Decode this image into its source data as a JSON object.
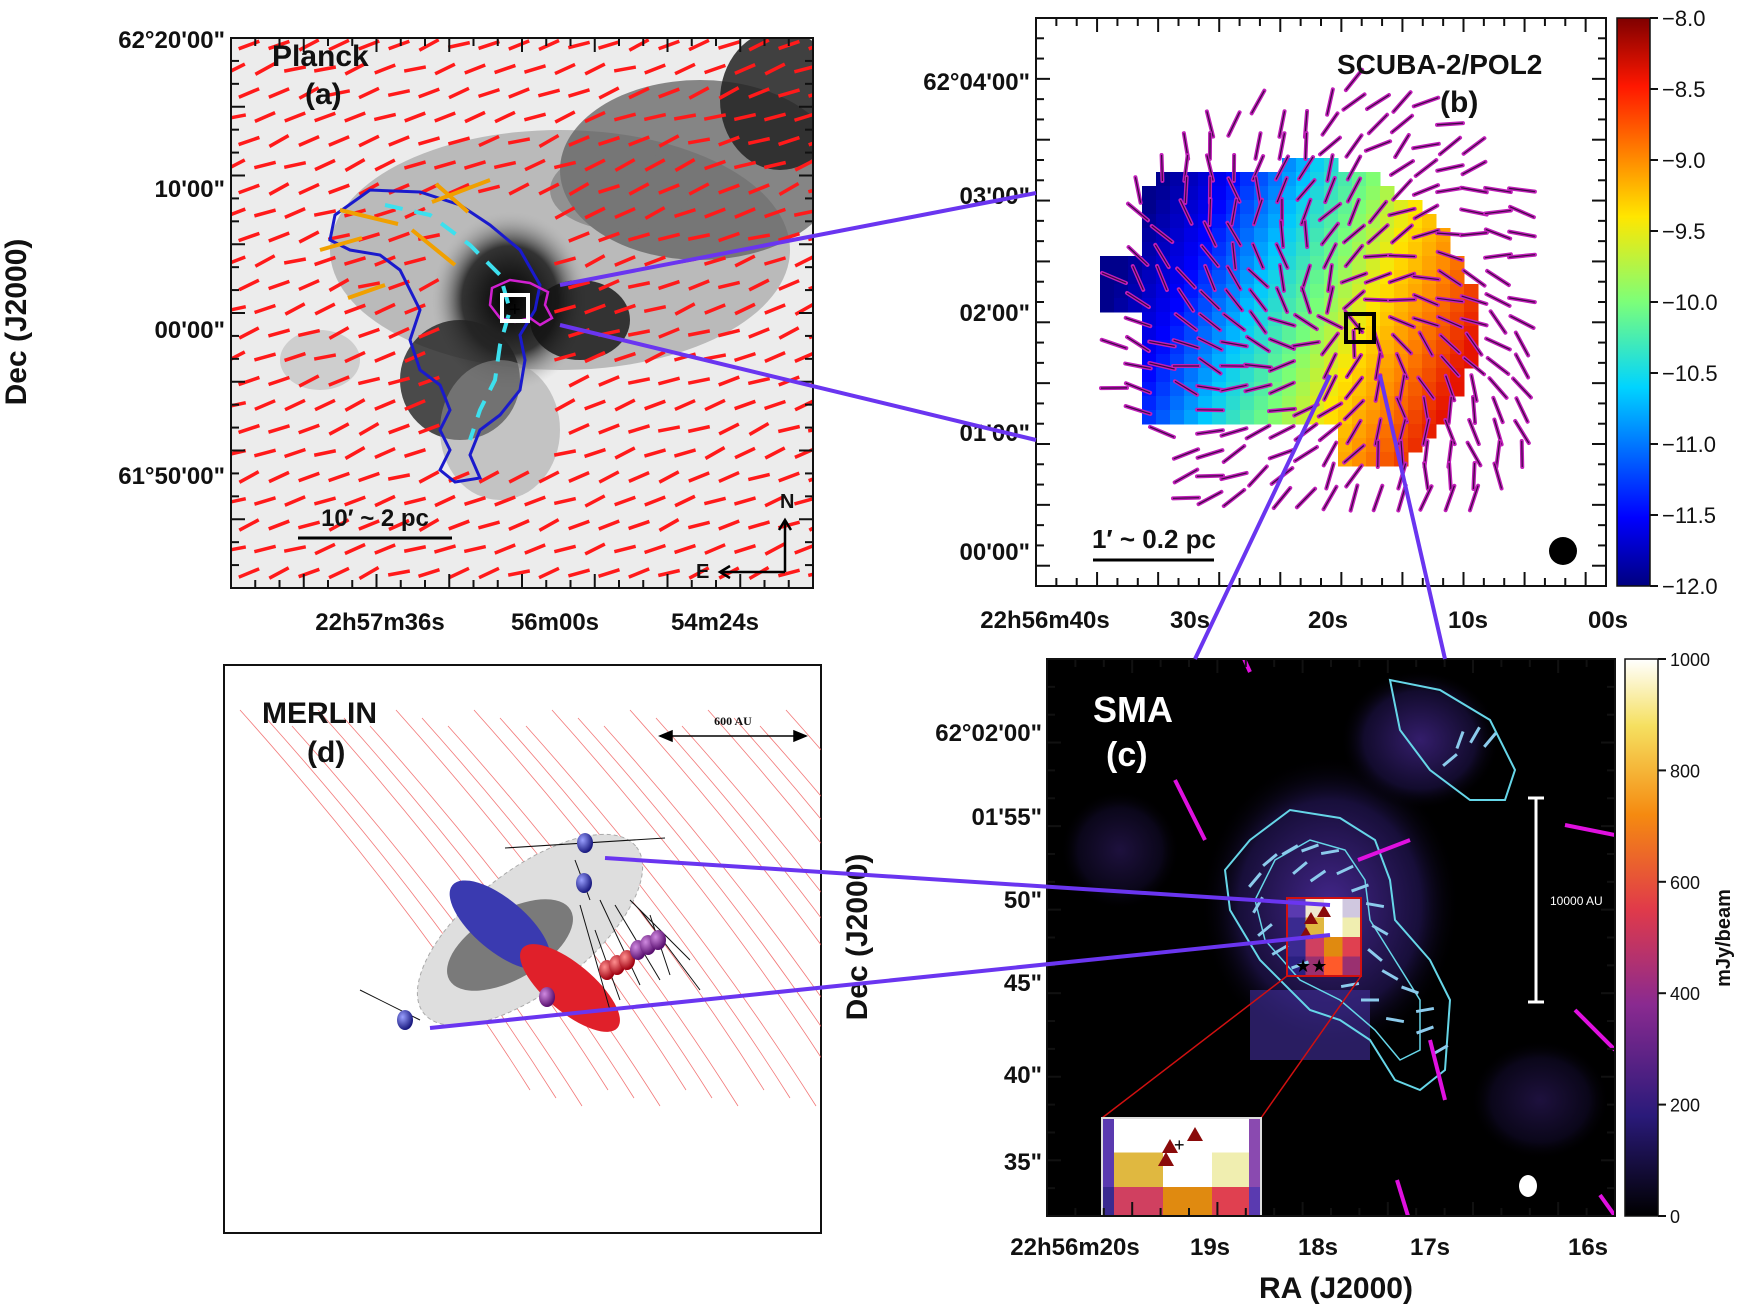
{
  "panel_a": {
    "title": "Planck",
    "letter": "(a)",
    "dec_ticks": [
      "62°20'00\"",
      "10'00\"",
      "00'00\"",
      "61°50'00\""
    ],
    "ra_ticks": [
      "22h57m36s",
      "56m00s",
      "54m24s"
    ],
    "ylabel": "Dec (J2000)",
    "scalebar": "10′ ~ 2 pc",
    "compass_n": "N",
    "compass_e": "E"
  },
  "panel_b": {
    "title": "SCUBA-2/POL2",
    "letter": "(b)",
    "dec_ticks": [
      "62°04'00\"",
      "03'00\"",
      "02'00\"",
      "01'00\"",
      "00'00\""
    ],
    "ra_ticks": [
      "22h56m40s",
      "30s",
      "20s",
      "10s",
      "00s"
    ],
    "scalebar": "1′ ~ 0.2 pc",
    "colorbar_ticks": [
      "−8.0",
      "−8.5",
      "−9.0",
      "−9.5",
      "−10.0",
      "−10.5",
      "−11.0",
      "−11.5",
      "−12.0"
    ]
  },
  "panel_c": {
    "title": "SMA",
    "letter": "(c)",
    "dec_ticks": [
      "62°02'00\"",
      "01'55\"",
      "50\"",
      "45\"",
      "40\"",
      "35\""
    ],
    "ra_ticks": [
      "22h56m20s",
      "19s",
      "18s",
      "17s",
      "16s"
    ],
    "ylabel": "Dec (J2000)",
    "xlabel": "RA (J2000)",
    "scalebar": "10000 AU",
    "colorbar_ticks": [
      "1000",
      "800",
      "600",
      "400",
      "200",
      "0"
    ],
    "colorbar_label": "mJy/beam"
  },
  "panel_d": {
    "title": "MERLIN",
    "letter": "(d)",
    "scalebar": "600 AU"
  },
  "colors": {
    "connector": "#6a35f0",
    "planck_vectors": "#ff1a1a",
    "pol2_vectors": "#c01fb8",
    "sma_vectors": "#8ccbec",
    "contour": "#66d6e8"
  }
}
